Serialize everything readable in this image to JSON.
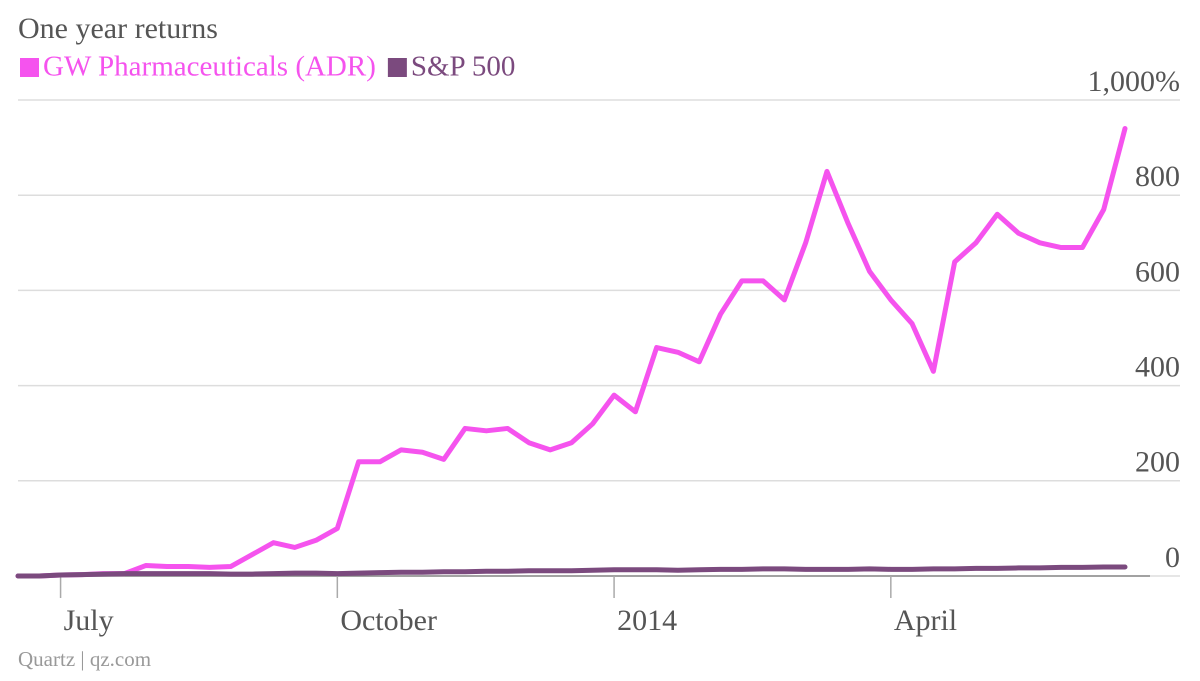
{
  "chart_data": {
    "type": "line",
    "title": "One year returns",
    "source": "Quartz | qz.com",
    "categories": [
      null,
      null,
      "July",
      null,
      null,
      null,
      null,
      null,
      null,
      null,
      null,
      null,
      null,
      null,
      null,
      "October",
      null,
      null,
      null,
      null,
      null,
      null,
      null,
      null,
      null,
      null,
      null,
      null,
      "2014",
      null,
      null,
      null,
      null,
      null,
      null,
      null,
      null,
      null,
      null,
      null,
      null,
      "April",
      null,
      null,
      null,
      null,
      null,
      null,
      null,
      null,
      null,
      null,
      null
    ],
    "series": [
      {
        "name": "GW Pharmaceuticals (ADR)",
        "color": "#f553ee",
        "values": [
          0,
          0,
          2,
          3,
          5,
          5,
          22,
          20,
          20,
          18,
          20,
          45,
          70,
          60,
          75,
          100,
          240,
          240,
          265,
          260,
          245,
          310,
          305,
          310,
          280,
          265,
          280,
          320,
          380,
          345,
          480,
          470,
          450,
          550,
          620,
          620,
          580,
          700,
          850,
          740,
          640,
          580,
          530,
          430,
          660,
          700,
          760,
          720,
          700,
          690,
          690,
          770,
          940
        ]
      },
      {
        "name": "S&P 500",
        "color": "#7b4a7e",
        "values": [
          0,
          0,
          2,
          3,
          4,
          5,
          5,
          5,
          5,
          5,
          4,
          4,
          5,
          6,
          6,
          5,
          6,
          7,
          8,
          8,
          9,
          9,
          10,
          10,
          11,
          11,
          11,
          12,
          13,
          13,
          13,
          12,
          13,
          14,
          14,
          15,
          15,
          14,
          14,
          14,
          15,
          14,
          14,
          15,
          15,
          16,
          16,
          17,
          17,
          18,
          18,
          19,
          19
        ]
      }
    ],
    "ylim": [
      0,
      1000
    ],
    "yticks": [
      0,
      200,
      400,
      600,
      800,
      {
        "value": 1000,
        "label": "1,000%"
      }
    ],
    "grid": true
  }
}
